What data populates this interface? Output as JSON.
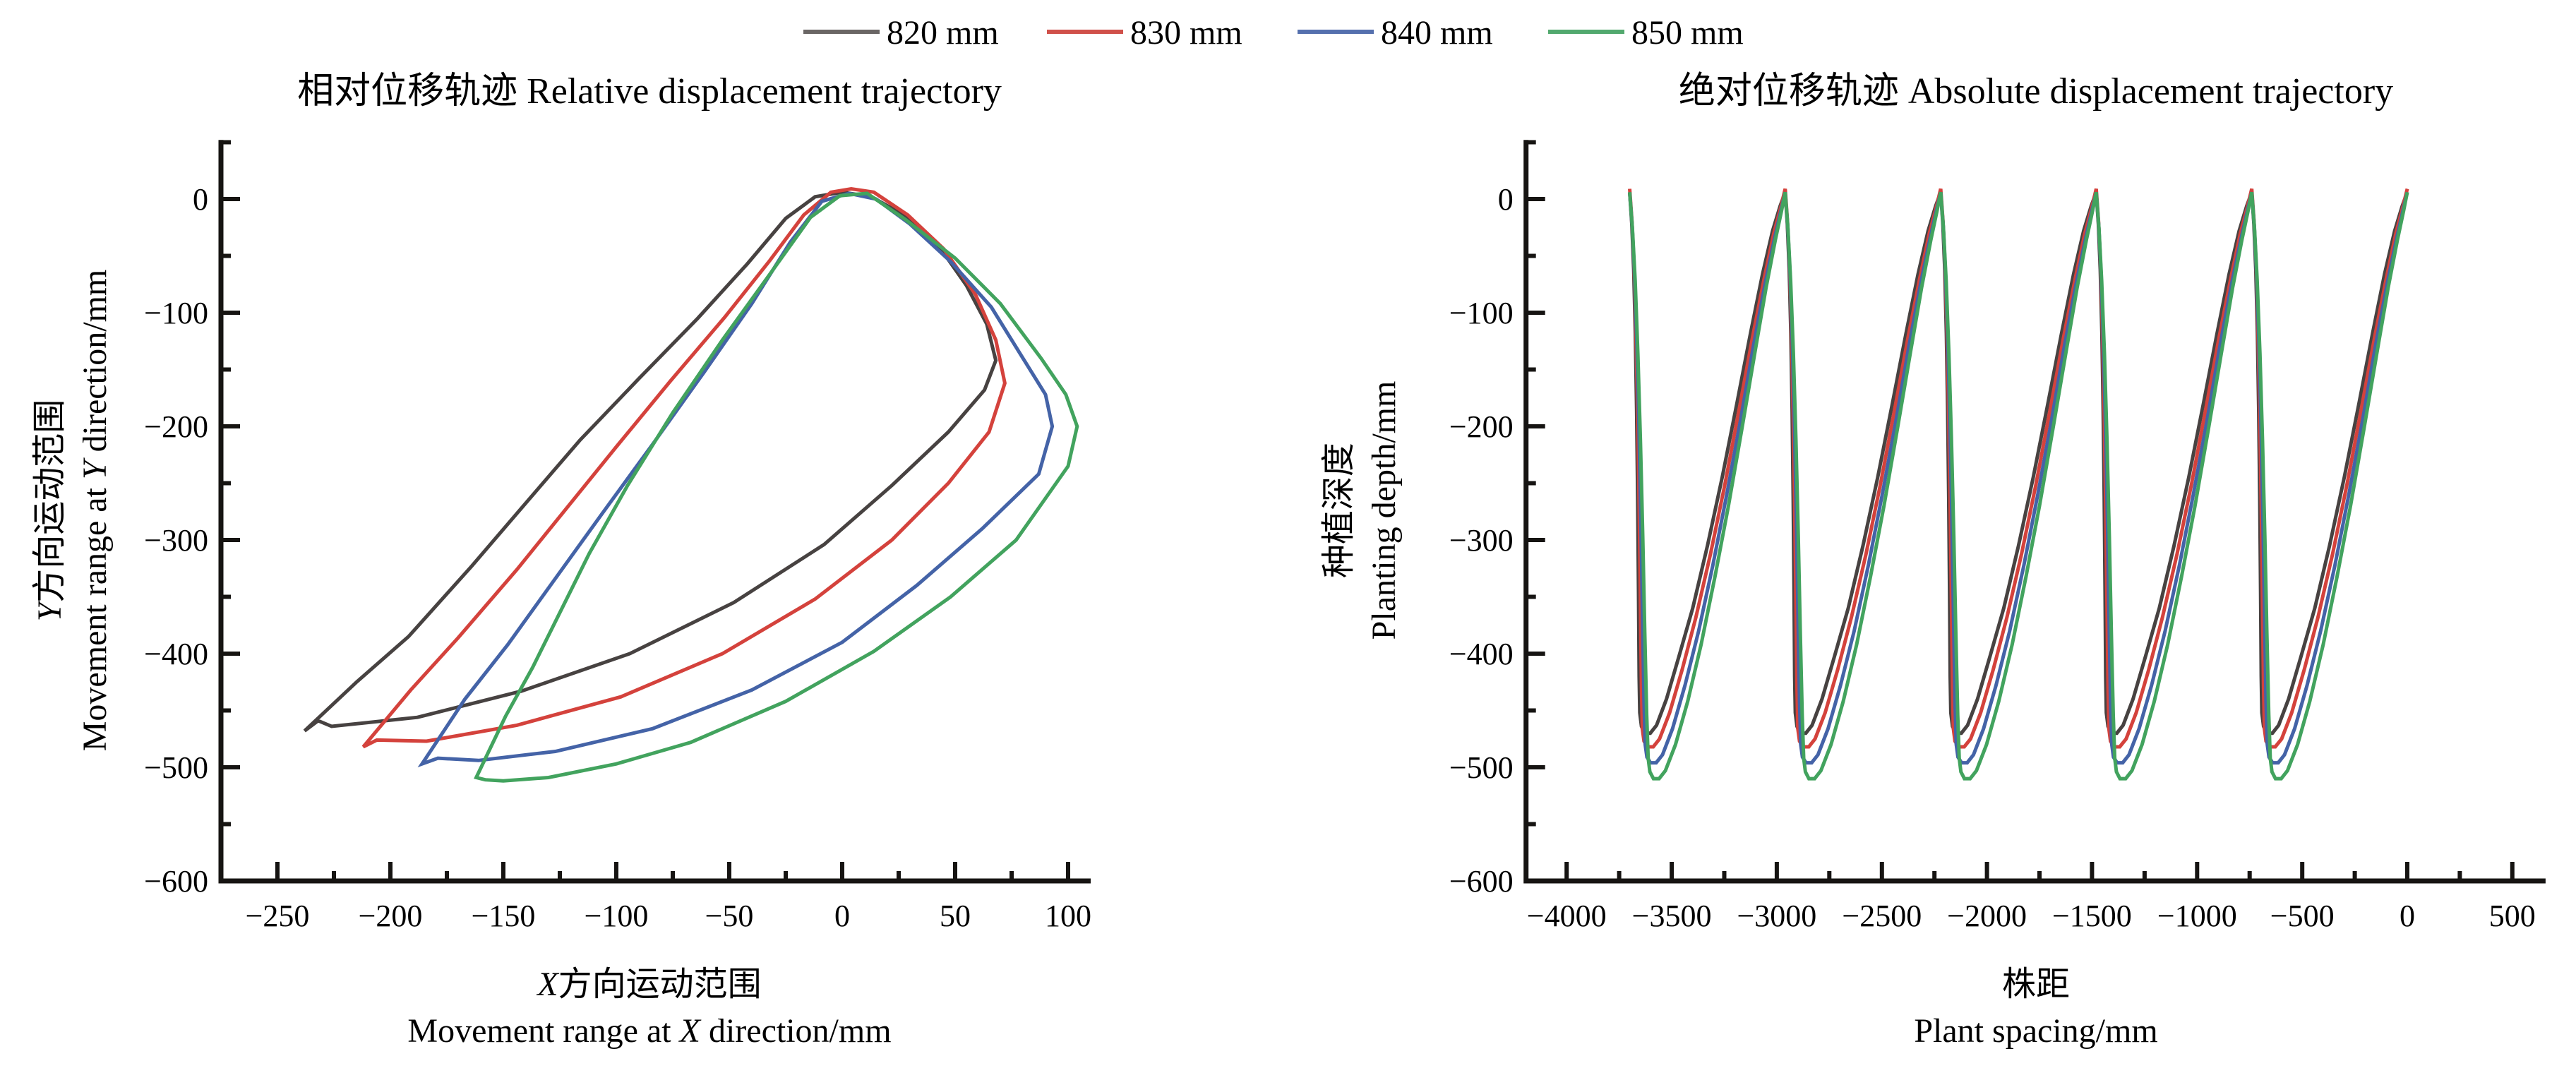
{
  "legend": {
    "items": [
      {
        "label": "820 mm",
        "swatch_color": "#6a6665",
        "color": "#474241"
      },
      {
        "label": "830 mm",
        "swatch_color": "#d0504a",
        "color": "#d4423c"
      },
      {
        "label": "840 mm",
        "swatch_color": "#5570ae",
        "color": "#4463a7"
      },
      {
        "label": "850 mm",
        "swatch_color": "#52a96e",
        "color": "#42a35e"
      }
    ]
  },
  "chart_data": [
    {
      "type": "line",
      "title": "相对位移轨迹 Relative displacement trajectory",
      "xlabel_zh": "X方向运动范围",
      "xlabel_en": "Movement range at X direction/mm",
      "ylabel_zh": "Y方向运动范围",
      "ylabel_en": "Movement range at Y direction/mm",
      "xlim": [
        -275,
        110
      ],
      "ylim": [
        -600,
        52
      ],
      "xticks": [
        -250,
        -200,
        -150,
        -100,
        -50,
        0,
        50,
        100
      ],
      "yticks": [
        0,
        -100,
        -200,
        -300,
        -400,
        -500,
        -600
      ],
      "x_minor_step": 25,
      "y_minor_step": 50,
      "grid": false,
      "legend_position": "top-outside",
      "series": [
        {
          "name": "820 mm",
          "color": "#474241",
          "closed": true,
          "points": [
            [
              -238,
              -468
            ],
            [
              -215,
              -425
            ],
            [
              -192,
              -385
            ],
            [
              -164,
              -323
            ],
            [
              -139,
              -265
            ],
            [
              -116,
              -212
            ],
            [
              -90,
              -158
            ],
            [
              -64,
              -105
            ],
            [
              -42,
              -57
            ],
            [
              -25,
              -17
            ],
            [
              -12,
              2
            ],
            [
              0,
              6
            ],
            [
              13,
              2
            ],
            [
              28,
              -15
            ],
            [
              43,
              -42
            ],
            [
              55,
              -76
            ],
            [
              64,
              -110
            ],
            [
              68,
              -142
            ],
            [
              63,
              -168
            ],
            [
              47,
              -205
            ],
            [
              22,
              -252
            ],
            [
              -8,
              -304
            ],
            [
              -48,
              -355
            ],
            [
              -94,
              -400
            ],
            [
              -142,
              -433
            ],
            [
              -188,
              -456
            ],
            [
              -226,
              -464
            ],
            [
              -232,
              -459
            ]
          ]
        },
        {
          "name": "830 mm",
          "color": "#d4423c",
          "closed": true,
          "points": [
            [
              -212,
              -482
            ],
            [
              -191,
              -432
            ],
            [
              -170,
              -386
            ],
            [
              -144,
              -326
            ],
            [
              -122,
              -272
            ],
            [
              -100,
              -218
            ],
            [
              -76,
              -160
            ],
            [
              -52,
              -104
            ],
            [
              -32,
              -54
            ],
            [
              -17,
              -14
            ],
            [
              -5,
              6
            ],
            [
              4,
              9
            ],
            [
              14,
              6
            ],
            [
              29,
              -14
            ],
            [
              45,
              -44
            ],
            [
              59,
              -84
            ],
            [
              68,
              -124
            ],
            [
              72,
              -162
            ],
            [
              65,
              -205
            ],
            [
              47,
              -250
            ],
            [
              22,
              -300
            ],
            [
              -12,
              -352
            ],
            [
              -53,
              -400
            ],
            [
              -98,
              -438
            ],
            [
              -144,
              -463
            ],
            [
              -184,
              -477
            ],
            [
              -206,
              -476
            ]
          ]
        },
        {
          "name": "840 mm",
          "color": "#4463a7",
          "closed": true,
          "points": [
            [
              -186,
              -497
            ],
            [
              -167,
              -440
            ],
            [
              -148,
              -392
            ],
            [
              -127,
              -334
            ],
            [
              -106,
              -276
            ],
            [
              -84,
              -216
            ],
            [
              -61,
              -152
            ],
            [
              -40,
              -92
            ],
            [
              -23,
              -38
            ],
            [
              -9,
              -2
            ],
            [
              3,
              5
            ],
            [
              15,
              0
            ],
            [
              30,
              -22
            ],
            [
              48,
              -55
            ],
            [
              66,
              -95
            ],
            [
              80,
              -140
            ],
            [
              90,
              -172
            ],
            [
              93,
              -200
            ],
            [
              87,
              -242
            ],
            [
              62,
              -290
            ],
            [
              33,
              -340
            ],
            [
              0,
              -390
            ],
            [
              -40,
              -432
            ],
            [
              -84,
              -466
            ],
            [
              -127,
              -486
            ],
            [
              -161,
              -494
            ],
            [
              -179,
              -492
            ]
          ]
        },
        {
          "name": "850 mm",
          "color": "#42a35e",
          "closed": true,
          "points": [
            [
              -162,
              -509
            ],
            [
              -149,
              -455
            ],
            [
              -137,
              -412
            ],
            [
              -127,
              -372
            ],
            [
              -112,
              -312
            ],
            [
              -95,
              -252
            ],
            [
              -75,
              -188
            ],
            [
              -53,
              -124
            ],
            [
              -32,
              -66
            ],
            [
              -14,
              -16
            ],
            [
              -1,
              3
            ],
            [
              11,
              5
            ],
            [
              28,
              -18
            ],
            [
              50,
              -52
            ],
            [
              70,
              -92
            ],
            [
              88,
              -140
            ],
            [
              99,
              -172
            ],
            [
              104,
              -200
            ],
            [
              100,
              -235
            ],
            [
              77,
              -300
            ],
            [
              48,
              -350
            ],
            [
              14,
              -398
            ],
            [
              -25,
              -442
            ],
            [
              -67,
              -478
            ],
            [
              -100,
              -497
            ],
            [
              -130,
              -509
            ],
            [
              -150,
              -512
            ],
            [
              -158,
              -511
            ]
          ]
        }
      ]
    },
    {
      "type": "line",
      "title": "绝对位移轨迹 Absolute displacement trajectory",
      "xlabel_zh": "株距",
      "xlabel_en": "Plant spacing/mm",
      "ylabel_zh": "种植深度",
      "ylabel_en": "Planting depth/mm",
      "xlim": [
        -4193,
        658
      ],
      "ylim": [
        -600,
        52
      ],
      "xticks": [
        -4000,
        -3500,
        -3000,
        -2500,
        -2000,
        -1500,
        -1000,
        -500,
        0,
        500
      ],
      "yticks": [
        0,
        -100,
        -200,
        -300,
        -400,
        -500,
        -600
      ],
      "x_minor_step": 250,
      "y_minor_step": 50,
      "grid": false,
      "peak_spacing_mm": 740,
      "series": [
        {
          "name": "820 mm",
          "color": "#474241",
          "apexes": [
            -3700,
            -2960,
            -2220,
            -1480,
            -740,
            0
          ],
          "cycle": [
            [
              0,
              6
            ],
            [
              10,
              -22
            ],
            [
              19,
              -62
            ],
            [
              27,
              -118
            ],
            [
              33,
              -185
            ],
            [
              38,
              -262
            ],
            [
              42,
              -345
            ],
            [
              45,
              -420
            ],
            [
              48,
              -452
            ],
            [
              56,
              -464
            ],
            [
              72,
              -470
            ],
            [
              98,
              -470
            ],
            [
              128,
              -463
            ],
            [
              175,
              -440
            ],
            [
              235,
              -402
            ],
            [
              300,
              -360
            ],
            [
              370,
              -305
            ],
            [
              440,
              -245
            ],
            [
              510,
              -180
            ],
            [
              575,
              -118
            ],
            [
              632,
              -66
            ],
            [
              680,
              -28
            ],
            [
              716,
              -6
            ],
            [
              740,
              6
            ]
          ]
        },
        {
          "name": "830 mm",
          "color": "#d4423c",
          "apexes": [
            -3700,
            -2960,
            -2220,
            -1480,
            -740,
            0
          ],
          "cycle": [
            [
              0,
              9
            ],
            [
              11,
              -20
            ],
            [
              21,
              -60
            ],
            [
              30,
              -118
            ],
            [
              38,
              -190
            ],
            [
              45,
              -270
            ],
            [
              51,
              -355
            ],
            [
              56,
              -430
            ],
            [
              60,
              -466
            ],
            [
              68,
              -477
            ],
            [
              85,
              -482
            ],
            [
              112,
              -482
            ],
            [
              142,
              -475
            ],
            [
              190,
              -452
            ],
            [
              250,
              -414
            ],
            [
              315,
              -368
            ],
            [
              385,
              -312
            ],
            [
              452,
              -252
            ],
            [
              520,
              -186
            ],
            [
              584,
              -122
            ],
            [
              640,
              -70
            ],
            [
              686,
              -30
            ],
            [
              719,
              -7
            ],
            [
              740,
              9
            ]
          ]
        },
        {
          "name": "840 mm",
          "color": "#4463a7",
          "apexes": [
            -3700,
            -2960,
            -2220,
            -1480,
            -740,
            0
          ],
          "cycle": [
            [
              0,
              6
            ],
            [
              12,
              -24
            ],
            [
              23,
              -66
            ],
            [
              34,
              -126
            ],
            [
              44,
              -200
            ],
            [
              53,
              -282
            ],
            [
              61,
              -368
            ],
            [
              68,
              -442
            ],
            [
              74,
              -480
            ],
            [
              82,
              -491
            ],
            [
              99,
              -496
            ],
            [
              126,
              -496
            ],
            [
              156,
              -489
            ],
            [
              204,
              -466
            ],
            [
              263,
              -428
            ],
            [
              328,
              -380
            ],
            [
              396,
              -322
            ],
            [
              462,
              -260
            ],
            [
              528,
              -194
            ],
            [
              590,
              -128
            ],
            [
              645,
              -74
            ],
            [
              690,
              -34
            ],
            [
              721,
              -9
            ],
            [
              740,
              6
            ]
          ]
        },
        {
          "name": "850 mm",
          "color": "#42a35e",
          "apexes": [
            -3700,
            -2960,
            -2220,
            -1480,
            -740,
            0
          ],
          "cycle": [
            [
              0,
              6
            ],
            [
              13,
              -26
            ],
            [
              26,
              -72
            ],
            [
              39,
              -136
            ],
            [
              51,
              -212
            ],
            [
              62,
              -296
            ],
            [
              72,
              -382
            ],
            [
              81,
              -454
            ],
            [
              88,
              -492
            ],
            [
              96,
              -504
            ],
            [
              113,
              -510
            ],
            [
              140,
              -510
            ],
            [
              170,
              -503
            ],
            [
              218,
              -480
            ],
            [
              276,
              -442
            ],
            [
              340,
              -392
            ],
            [
              406,
              -332
            ],
            [
              470,
              -270
            ],
            [
              534,
              -202
            ],
            [
              595,
              -136
            ],
            [
              649,
              -78
            ],
            [
              693,
              -36
            ],
            [
              723,
              -10
            ],
            [
              740,
              6
            ]
          ]
        }
      ]
    }
  ]
}
